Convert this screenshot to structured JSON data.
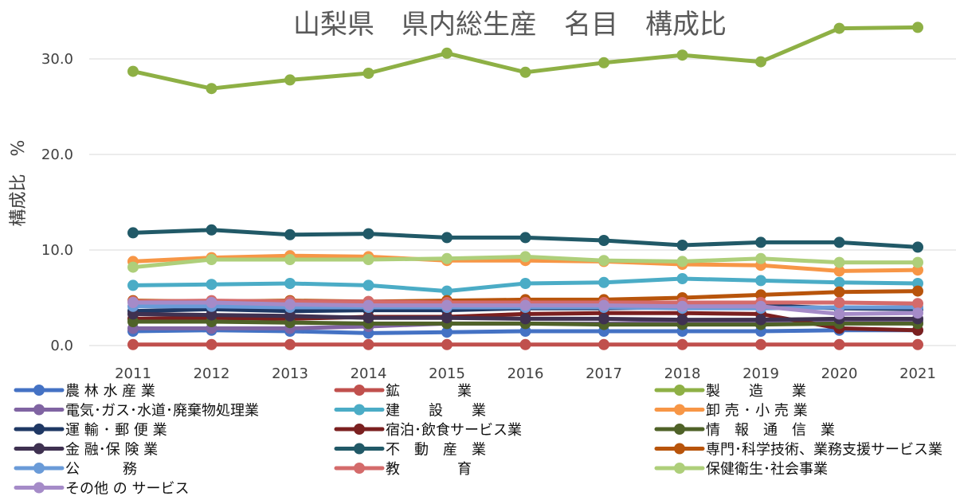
{
  "chart_data": {
    "type": "line",
    "title": "山梨県　県内総生産　名目　構成比",
    "ylabel": "構成比　%",
    "xlabel": "",
    "ylim": [
      0,
      33
    ],
    "yticks": [
      0,
      10,
      20,
      30
    ],
    "ytick_labels": [
      "0.0",
      "10.0",
      "20.0",
      "30.0"
    ],
    "grid": "horizontal",
    "legend_position": "bottom",
    "x": [
      "2011",
      "2012",
      "2013",
      "2014",
      "2015",
      "2016",
      "2017",
      "2018",
      "2019",
      "2020",
      "2021"
    ],
    "series": [
      {
        "name": "農 林 水 産 業",
        "color": "#4472C4",
        "values": [
          1.5,
          1.6,
          1.5,
          1.3,
          1.4,
          1.5,
          1.5,
          1.5,
          1.5,
          1.6,
          1.6
        ]
      },
      {
        "name": "鉱　　　　業",
        "color": "#C0504D",
        "values": [
          0.1,
          0.1,
          0.1,
          0.1,
          0.1,
          0.1,
          0.1,
          0.1,
          0.1,
          0.1,
          0.1
        ]
      },
      {
        "name": "製　　造　　業",
        "color": "#8EB045",
        "values": [
          28.7,
          26.9,
          27.8,
          28.5,
          30.6,
          28.6,
          29.6,
          30.4,
          29.7,
          33.2,
          33.3
        ]
      },
      {
        "name": "電気･ガス･水道･廃棄物処理業",
        "color": "#8064A2",
        "values": [
          1.8,
          1.8,
          1.8,
          2.0,
          2.3,
          2.3,
          2.3,
          2.4,
          2.4,
          2.4,
          2.5
        ]
      },
      {
        "name": "建　　設　　業",
        "color": "#4BACC6",
        "values": [
          6.3,
          6.4,
          6.5,
          6.3,
          5.7,
          6.5,
          6.6,
          7.0,
          6.8,
          6.6,
          6.5
        ]
      },
      {
        "name": "卸 売 ･ 小 売 業",
        "color": "#F79646",
        "values": [
          8.8,
          9.2,
          9.4,
          9.3,
          8.9,
          8.9,
          8.8,
          8.5,
          8.4,
          7.8,
          7.9
        ]
      },
      {
        "name": "運 輸 ･ 郵 便 業",
        "color": "#1F3864",
        "values": [
          3.6,
          3.8,
          3.6,
          3.7,
          3.7,
          3.9,
          3.9,
          4.0,
          4.2,
          3.9,
          3.8
        ]
      },
      {
        "name": "宿泊･飲食サービス業",
        "color": "#7B2020",
        "values": [
          2.8,
          2.9,
          2.8,
          3.0,
          3.0,
          3.3,
          3.4,
          3.4,
          3.3,
          1.8,
          1.6
        ]
      },
      {
        "name": "情　報　通　信　業",
        "color": "#4F6228",
        "values": [
          2.5,
          2.5,
          2.4,
          2.3,
          2.3,
          2.3,
          2.2,
          2.2,
          2.2,
          2.3,
          2.3
        ]
      },
      {
        "name": "金 融･保 険 業",
        "color": "#3F3151",
        "values": [
          3.3,
          3.2,
          3.1,
          2.9,
          2.9,
          2.8,
          2.8,
          2.7,
          2.7,
          2.8,
          2.8
        ]
      },
      {
        "name": "不　動　産　業",
        "color": "#215967",
        "values": [
          11.8,
          12.1,
          11.6,
          11.7,
          11.3,
          11.3,
          11.0,
          10.5,
          10.8,
          10.8,
          10.3
        ]
      },
      {
        "name": "専門･科学技術、業務支援サービス業",
        "color": "#B8540B",
        "values": [
          4.7,
          4.6,
          4.7,
          4.6,
          4.7,
          4.8,
          4.8,
          5.0,
          5.3,
          5.6,
          5.7
        ]
      },
      {
        "name": "公　　　務",
        "color": "#6A9BD8",
        "values": [
          4.1,
          4.1,
          4.0,
          4.0,
          4.0,
          4.0,
          4.0,
          3.9,
          3.9,
          4.0,
          4.0
        ]
      },
      {
        "name": "教　　　　育",
        "color": "#D46B6B",
        "values": [
          4.6,
          4.7,
          4.6,
          4.6,
          4.5,
          4.5,
          4.5,
          4.5,
          4.5,
          4.5,
          4.4
        ]
      },
      {
        "name": "保健衛生･社会事業",
        "color": "#AECF7A",
        "values": [
          8.2,
          9.0,
          9.0,
          9.0,
          9.1,
          9.3,
          8.9,
          8.8,
          9.1,
          8.7,
          8.7
        ]
      },
      {
        "name": "その他 の サービス",
        "color": "#A58BC8",
        "values": [
          4.5,
          4.5,
          4.3,
          4.2,
          4.2,
          4.2,
          4.2,
          4.1,
          4.1,
          3.3,
          3.4
        ]
      }
    ]
  }
}
